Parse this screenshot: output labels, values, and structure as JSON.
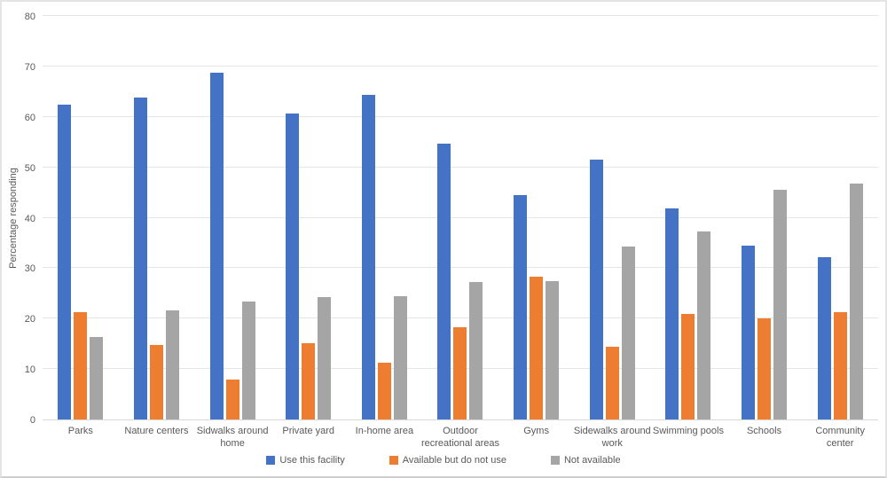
{
  "chart_data": {
    "type": "bar",
    "title": "",
    "xlabel": "",
    "ylabel": "Percentage responding",
    "ylim": [
      0,
      80
    ],
    "yticks": [
      0,
      10,
      20,
      30,
      40,
      50,
      60,
      70,
      80
    ],
    "grid": true,
    "legend_position": "bottom",
    "categories": [
      "Parks",
      "Nature centers",
      "Sidwalks around home",
      "Private yard",
      "In-home area",
      "Outdoor recreational areas",
      "Gyms",
      "Sidewalks around work",
      "Swimming pools",
      "Schools",
      "Community center"
    ],
    "x_tick_labels": [
      "Parks",
      "Nature centers",
      "Sidwalks around\nhome",
      "Private yard",
      "In-home area",
      "Outdoor\nrecreational areas",
      "Gyms",
      "Sidewalks around\nwork",
      "Swimming pools",
      "Schools",
      "Community\ncenter"
    ],
    "series": [
      {
        "name": "Use this facility",
        "color": "#4472C4",
        "values": [
          62.4,
          63.8,
          68.8,
          60.7,
          64.4,
          54.6,
          44.4,
          51.5,
          41.8,
          34.5,
          32.1
        ]
      },
      {
        "name": "Available but do not use",
        "color": "#ED7D31",
        "values": [
          21.3,
          14.8,
          7.9,
          15.2,
          11.2,
          18.3,
          28.3,
          14.5,
          21.0,
          20.0,
          21.3
        ]
      },
      {
        "name": "Not available",
        "color": "#A5A5A5",
        "values": [
          16.4,
          21.7,
          23.3,
          24.2,
          24.4,
          27.3,
          27.4,
          34.3,
          37.3,
          45.6,
          46.8
        ]
      }
    ]
  },
  "colors": {
    "grid": "#E5E5E5",
    "axis": "#D9D9D9",
    "text": "#595959",
    "background": "#FFFFFF"
  }
}
